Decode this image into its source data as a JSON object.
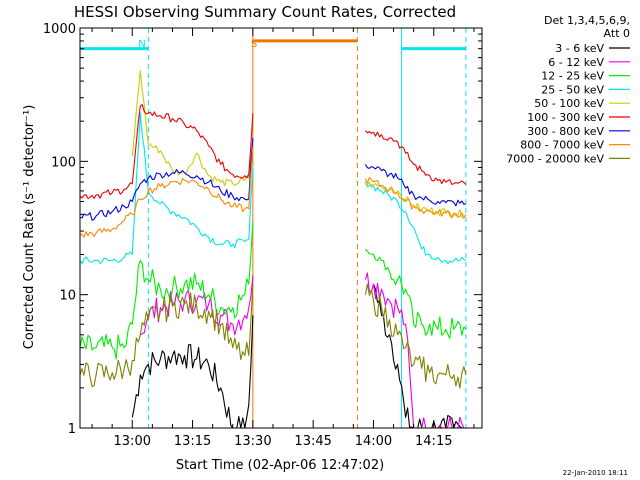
{
  "chart_data": {
    "type": "line",
    "title": "HESSI Observing Summary Count Rates, Corrected",
    "xlabel": "Start Time (02-Apr-06 12:47:02)",
    "ylabel": "Corrected Count Rate (s⁻¹ detector⁻¹)",
    "yscale": "log",
    "xlim": [
      "12:47",
      "14:27"
    ],
    "ylim": [
      1,
      1000
    ],
    "x_ticks": [
      "13:00",
      "13:15",
      "13:30",
      "13:45",
      "14:00",
      "14:15"
    ],
    "y_ticks": [
      "1",
      "10",
      "100",
      "1000"
    ],
    "legend_title": [
      "Det 1,3,4,5,6,9,",
      "Att 0"
    ],
    "legend_position": "right",
    "footer": "22-Jan-2010 18:11",
    "annotations": [
      {
        "text": "N",
        "x": "13:01",
        "color": "#00e5ee"
      },
      {
        "text": "S",
        "x": "13:29",
        "color": "#ee7700"
      }
    ],
    "night_periods": [
      [
        "12:47",
        "13:04"
      ],
      [
        "14:07",
        "14:23"
      ]
    ],
    "night_level": 700,
    "saa_periods": [
      [
        "13:30",
        "13:56"
      ]
    ],
    "saa_level": 800,
    "data_gap": [
      "13:30",
      "13:56"
    ],
    "vertical_lines": [
      {
        "x": "13:04",
        "color": "#00e5ee",
        "style": "dashed"
      },
      {
        "x": "14:07",
        "color": "#00e5ee",
        "style": "solid"
      },
      {
        "x": "14:23",
        "color": "#00e5ee",
        "style": "dashed"
      },
      {
        "x": "13:30",
        "color": "#ee7700",
        "style": "solid"
      },
      {
        "x": "13:56",
        "color": "#ee7700",
        "style": "dashed"
      }
    ],
    "x": [
      "12:47",
      "12:51",
      "12:55",
      "12:58",
      "13:00",
      "13:02",
      "13:04",
      "13:07",
      "13:10",
      "13:13",
      "13:16",
      "13:19",
      "13:22",
      "13:25",
      "13:28",
      "13:29",
      "13:30",
      "13:56",
      "13:58",
      "14:00",
      "14:02",
      "14:04",
      "14:06",
      "14:08",
      "14:10",
      "14:12",
      "14:14",
      "14:16",
      "14:18",
      "14:20",
      "14:23"
    ],
    "series": [
      {
        "name": "3 - 6 keV",
        "color": "#000000",
        "values": [
          null,
          null,
          null,
          null,
          1.2,
          2.5,
          3.0,
          3.3,
          3.5,
          3.5,
          3.3,
          3.0,
          2.0,
          1.0,
          1.0,
          1.5,
          7,
          null,
          null,
          12,
          7,
          5,
          3,
          1.2,
          1,
          1,
          1,
          1,
          1,
          1,
          1
        ]
      },
      {
        "name": "6 - 12 keV",
        "color": "#ee00ee",
        "values": [
          null,
          null,
          null,
          null,
          null,
          5,
          7,
          8,
          8.5,
          9,
          9,
          8.5,
          7,
          6,
          7,
          8,
          14,
          null,
          13,
          12,
          11,
          9,
          8,
          6,
          1,
          1,
          1,
          1,
          1,
          1,
          1
        ]
      },
      {
        "name": "12 - 25 keV",
        "color": "#00ee00",
        "values": [
          4,
          4,
          4,
          4,
          6,
          18,
          13,
          11,
          11,
          12,
          12,
          10,
          8,
          8,
          10,
          12,
          35,
          null,
          22,
          20,
          18,
          15,
          13,
          11,
          6,
          6,
          6,
          5.5,
          5.5,
          5.5,
          5.5
        ]
      },
      {
        "name": "25 - 50 keV",
        "color": "#00e5ee",
        "values": [
          18,
          18,
          18,
          19,
          20,
          230,
          60,
          48,
          42,
          38,
          32,
          27,
          24,
          24,
          25,
          26,
          90,
          null,
          70,
          65,
          60,
          55,
          50,
          42,
          32,
          22,
          20,
          19,
          18,
          18,
          18
        ]
      },
      {
        "name": "50 - 100 keV",
        "color": "#cccc00",
        "values": [
          null,
          null,
          null,
          null,
          110,
          480,
          135,
          120,
          85,
          82,
          115,
          78,
          70,
          68,
          72,
          75,
          140,
          null,
          68,
          66,
          64,
          62,
          60,
          52,
          47,
          44,
          43,
          42,
          42,
          41,
          40
        ]
      },
      {
        "name": "100 - 300 keV",
        "color": "#ee0000",
        "values": [
          55,
          56,
          58,
          62,
          68,
          260,
          230,
          220,
          210,
          190,
          170,
          130,
          95,
          80,
          78,
          80,
          230,
          null,
          170,
          165,
          158,
          150,
          140,
          115,
          95,
          85,
          78,
          72,
          70,
          68,
          67
        ]
      },
      {
        "name": "300 - 800 keV",
        "color": "#0000ee",
        "values": [
          38,
          39,
          42,
          46,
          50,
          68,
          75,
          80,
          82,
          82,
          78,
          70,
          60,
          55,
          52,
          52,
          150,
          null,
          95,
          90,
          85,
          80,
          75,
          63,
          56,
          53,
          51,
          50,
          49,
          49,
          48
        ]
      },
      {
        "name": "800 - 7000 keV",
        "color": "#ff8800",
        "values": [
          28,
          29,
          31,
          36,
          40,
          52,
          60,
          65,
          70,
          72,
          70,
          62,
          52,
          46,
          44,
          44,
          130,
          null,
          74,
          70,
          66,
          62,
          58,
          50,
          46,
          43,
          42,
          41,
          41,
          40,
          40
        ]
      },
      {
        "name": "7000 - 20000 keV",
        "color": "#808000",
        "values": [
          2.5,
          2.5,
          2.6,
          2.8,
          3.2,
          5,
          6.5,
          7.5,
          8.2,
          8.5,
          8.2,
          7.5,
          6,
          4,
          3.5,
          3.5,
          12,
          null,
          10,
          9,
          8,
          6.5,
          5,
          4,
          3,
          2.8,
          2.6,
          2.5,
          2.5,
          2.5,
          2.5
        ]
      }
    ]
  }
}
